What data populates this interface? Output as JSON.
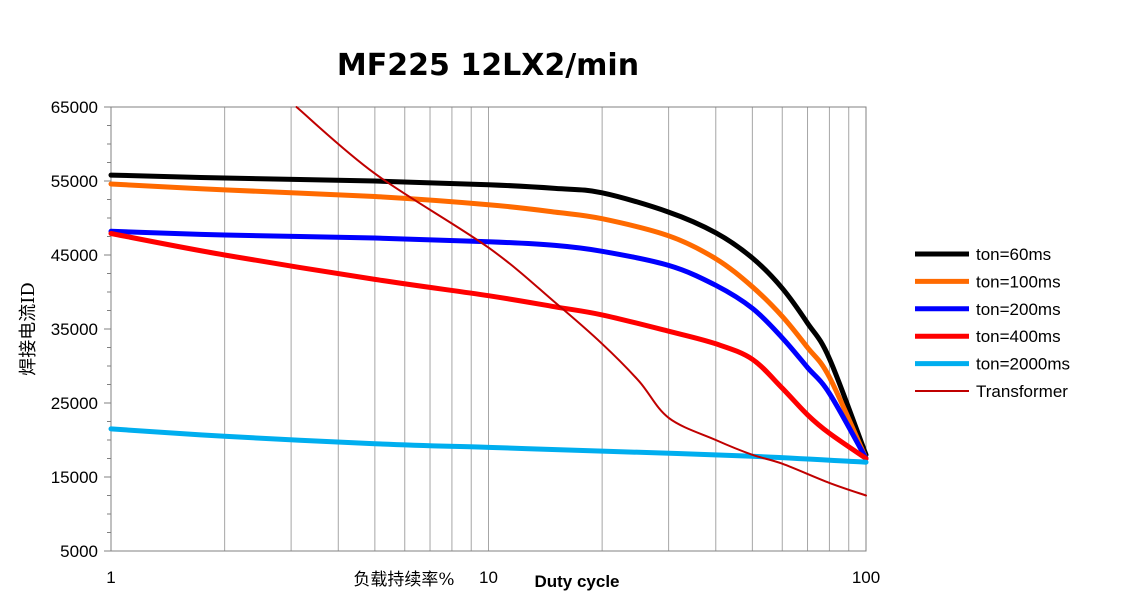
{
  "chart_data": {
    "type": "line",
    "title": "MF225 12LX2/min",
    "ylabel": "焊接电流ID",
    "xlabel_cn": "负载持续率%",
    "xlabel_en": "Duty cycle",
    "x_scale": "log",
    "xlim": [
      1,
      100
    ],
    "ylim": [
      5000,
      65000
    ],
    "x_ticks": [
      {
        "value": 1,
        "label": "1"
      },
      {
        "value": 10,
        "label": "10"
      },
      {
        "value": 100,
        "label": "100"
      }
    ],
    "y_ticks": [
      {
        "value": 65000,
        "label": "65000"
      },
      {
        "value": 55000,
        "label": "55000"
      },
      {
        "value": 45000,
        "label": "45000"
      },
      {
        "value": 35000,
        "label": "35000"
      },
      {
        "value": 25000,
        "label": "25000"
      },
      {
        "value": 15000,
        "label": "15000"
      },
      {
        "value": 5000,
        "label": "5000"
      }
    ],
    "y_minor_step": 2500,
    "grid": true,
    "legend_position": "right",
    "series": [
      {
        "name": "ton=60ms",
        "color": "#000000",
        "width": 5,
        "x": [
          1,
          2,
          5,
          10,
          15,
          20,
          30,
          40,
          50,
          60,
          70,
          80,
          100
        ],
        "y": [
          55800,
          55400,
          55000,
          54500,
          54000,
          53400,
          50800,
          48000,
          44600,
          40500,
          35800,
          31000,
          18000
        ]
      },
      {
        "name": "ton=100ms",
        "color": "#FF6A00",
        "width": 5,
        "x": [
          1,
          2,
          5,
          10,
          15,
          20,
          30,
          40,
          50,
          60,
          70,
          80,
          100
        ],
        "y": [
          54600,
          53800,
          52900,
          51800,
          50800,
          49900,
          47600,
          44500,
          40700,
          36700,
          32500,
          28500,
          17500
        ]
      },
      {
        "name": "ton=200ms",
        "color": "#0000FF",
        "width": 5,
        "x": [
          1,
          2,
          5,
          10,
          15,
          20,
          30,
          40,
          50,
          60,
          70,
          80,
          100
        ],
        "y": [
          48200,
          47700,
          47300,
          46800,
          46300,
          45500,
          43600,
          40900,
          37800,
          33800,
          29800,
          26300,
          17500
        ]
      },
      {
        "name": "ton=400ms",
        "color": "#FF0000",
        "width": 5,
        "x": [
          1,
          2,
          5,
          10,
          15,
          20,
          30,
          40,
          50,
          60,
          70,
          80,
          100
        ],
        "y": [
          47900,
          45000,
          41700,
          39500,
          38000,
          36900,
          34700,
          33000,
          30900,
          27000,
          23400,
          20900,
          17500
        ]
      },
      {
        "name": "ton=2000ms",
        "color": "#00AEEF",
        "width": 5,
        "x": [
          1,
          2,
          5,
          10,
          20,
          50,
          100
        ],
        "y": [
          21500,
          20500,
          19500,
          19000,
          18500,
          17800,
          17000
        ]
      },
      {
        "name": "Transformer",
        "color": "#C00000",
        "width": 2,
        "x": [
          3.1,
          5,
          10,
          15,
          20,
          25,
          30,
          40,
          50,
          60,
          80,
          100
        ],
        "y": [
          65000,
          56000,
          46000,
          38600,
          33000,
          28000,
          23000,
          20000,
          18000,
          16800,
          14200,
          12500
        ]
      }
    ]
  }
}
